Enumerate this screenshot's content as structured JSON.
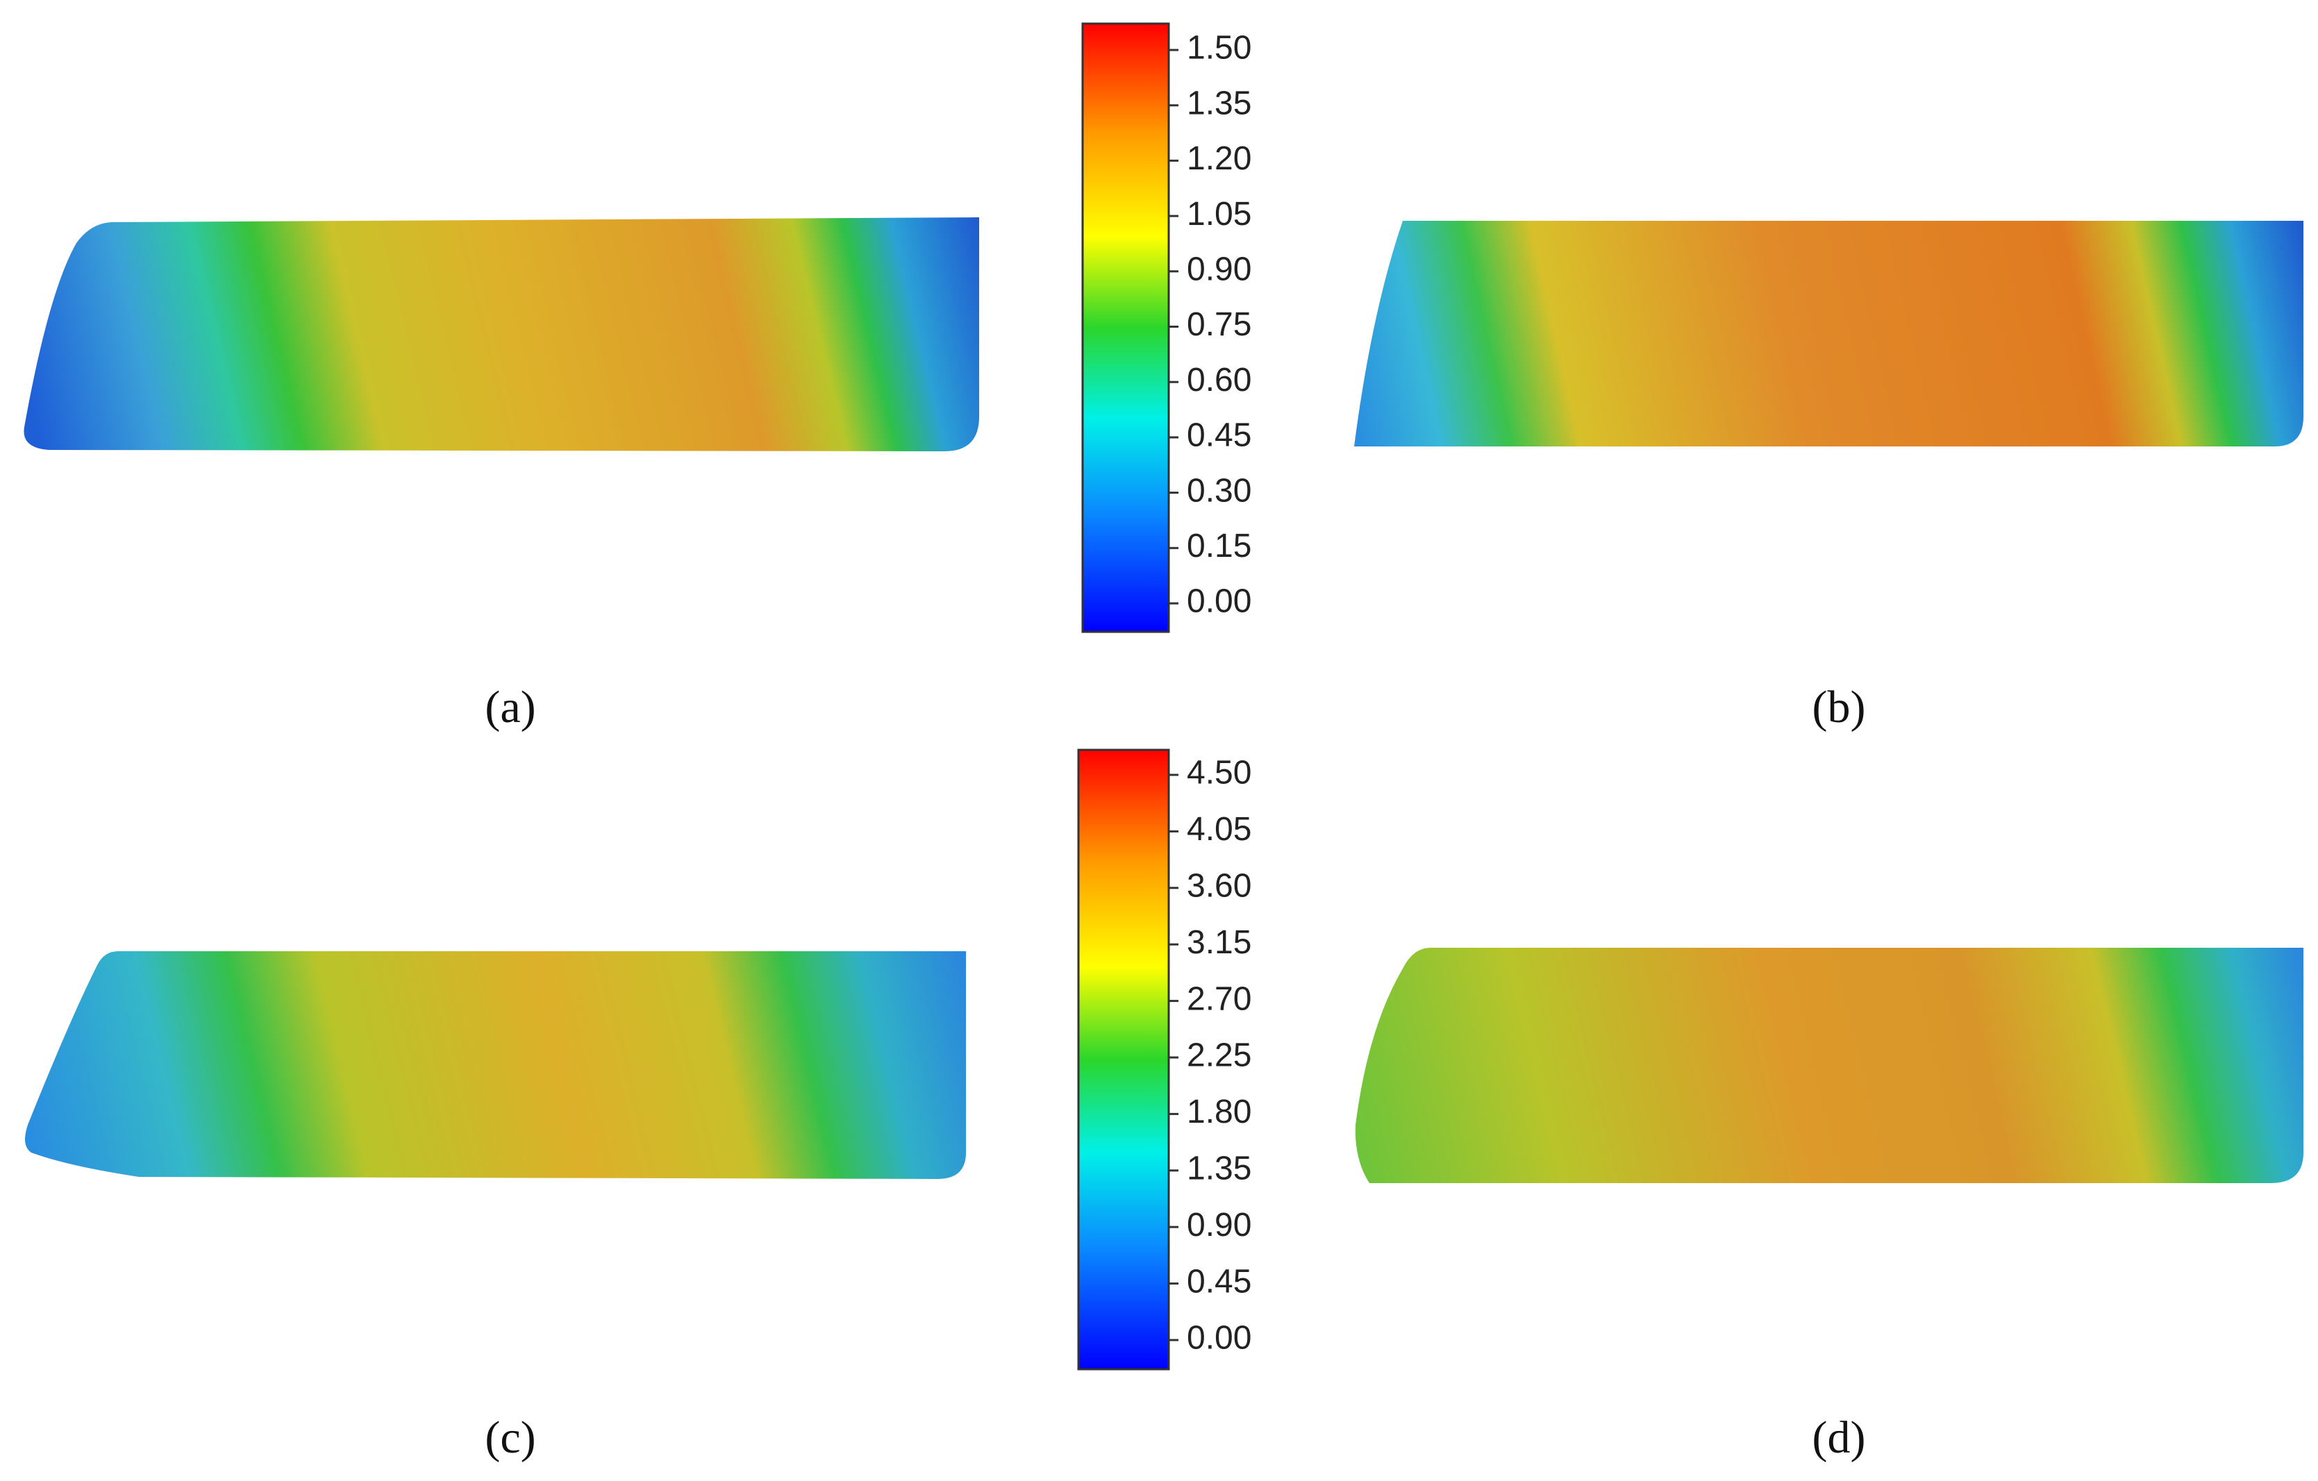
{
  "colorbars": [
    {
      "ticks": [
        "1.50",
        "1.35",
        "1.20",
        "1.05",
        "0.90",
        "0.75",
        "0.60",
        "0.45",
        "0.30",
        "0.15",
        "0.00"
      ]
    },
    {
      "ticks": [
        "4.50",
        "4.05",
        "3.60",
        "3.15",
        "2.70",
        "2.25",
        "1.80",
        "1.35",
        "0.90",
        "0.45",
        "0.00"
      ]
    }
  ],
  "panels": [
    {
      "label": "(a)"
    },
    {
      "label": "(b)"
    },
    {
      "label": "(c)"
    },
    {
      "label": "(d)"
    }
  ]
}
